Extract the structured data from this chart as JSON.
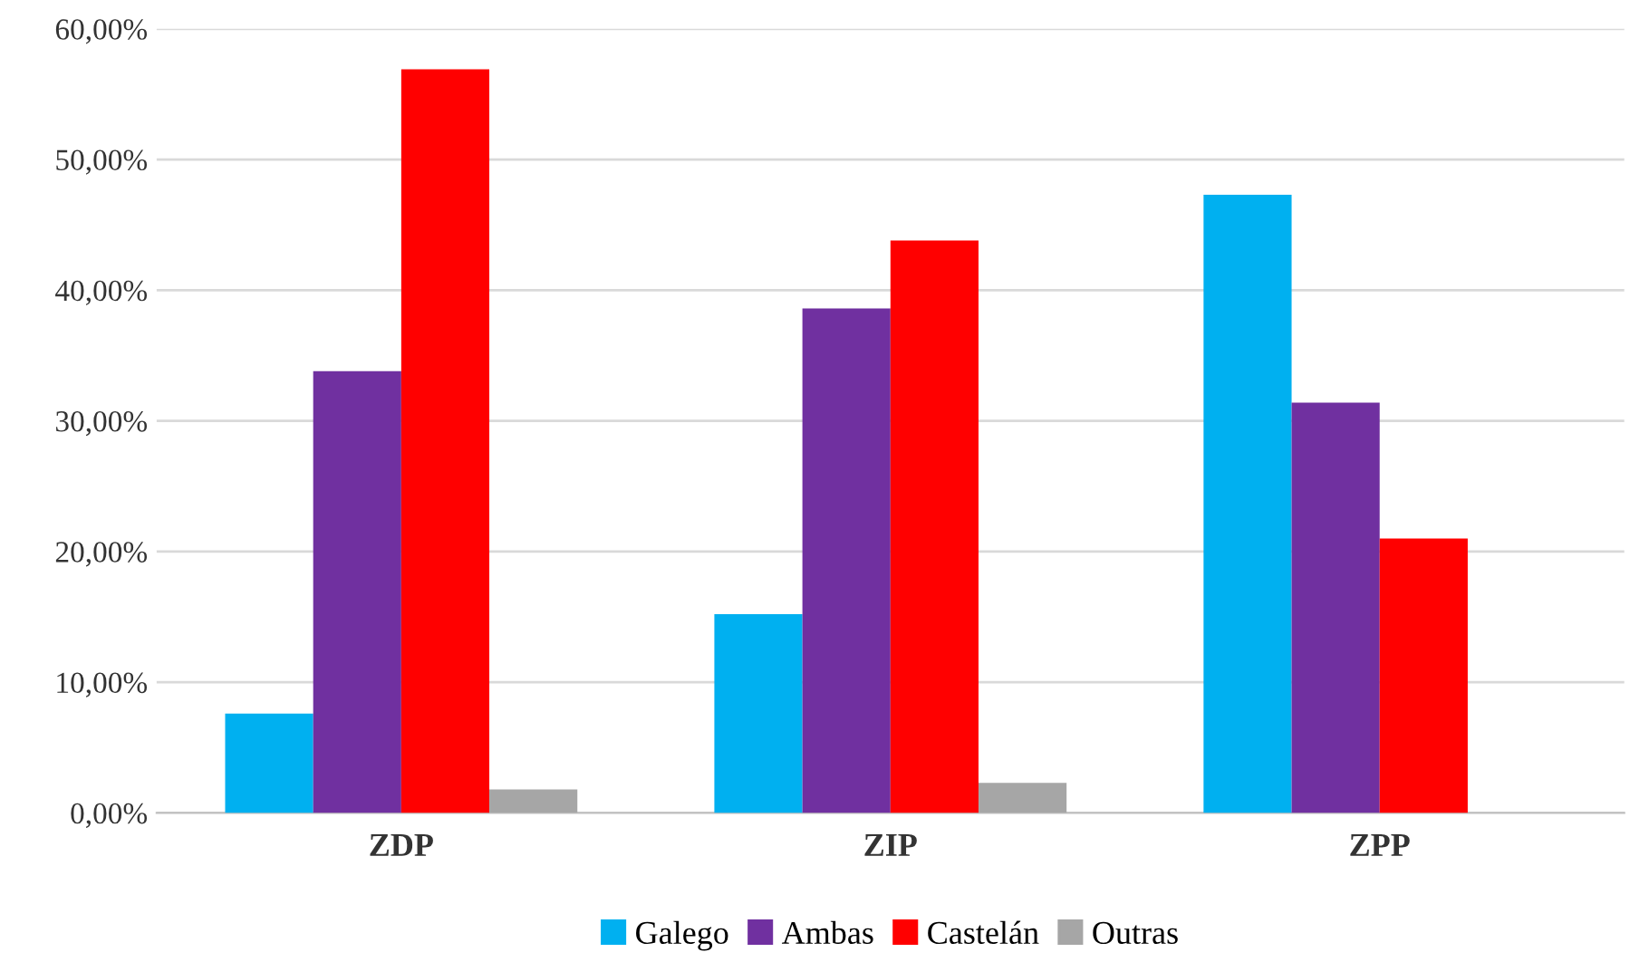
{
  "chart_data": {
    "type": "bar",
    "categories": [
      "ZDP",
      "ZIP",
      "ZPP"
    ],
    "series": [
      {
        "name": "Galego",
        "color": "#00b0f0",
        "values": [
          7.6,
          15.2,
          47.3
        ]
      },
      {
        "name": "Ambas",
        "color": "#7030a0",
        "values": [
          33.8,
          38.6,
          31.4
        ]
      },
      {
        "name": "Castelán",
        "color": "#ff0000",
        "values": [
          56.9,
          43.8,
          21.0
        ]
      },
      {
        "name": "Outras",
        "color": "#a6a6a6",
        "values": [
          1.8,
          2.3,
          0
        ]
      }
    ],
    "ylim": [
      0,
      60
    ],
    "yticks": [
      {
        "value": 0,
        "label": "0,00%"
      },
      {
        "value": 10,
        "label": "10,00%"
      },
      {
        "value": 20,
        "label": "20,00%"
      },
      {
        "value": 30,
        "label": "30,00%"
      },
      {
        "value": 40,
        "label": "40,00%"
      },
      {
        "value": 50,
        "label": "50,00%"
      },
      {
        "value": 60,
        "label": "60,00%"
      }
    ],
    "grid": "y",
    "legend": "bottom"
  }
}
